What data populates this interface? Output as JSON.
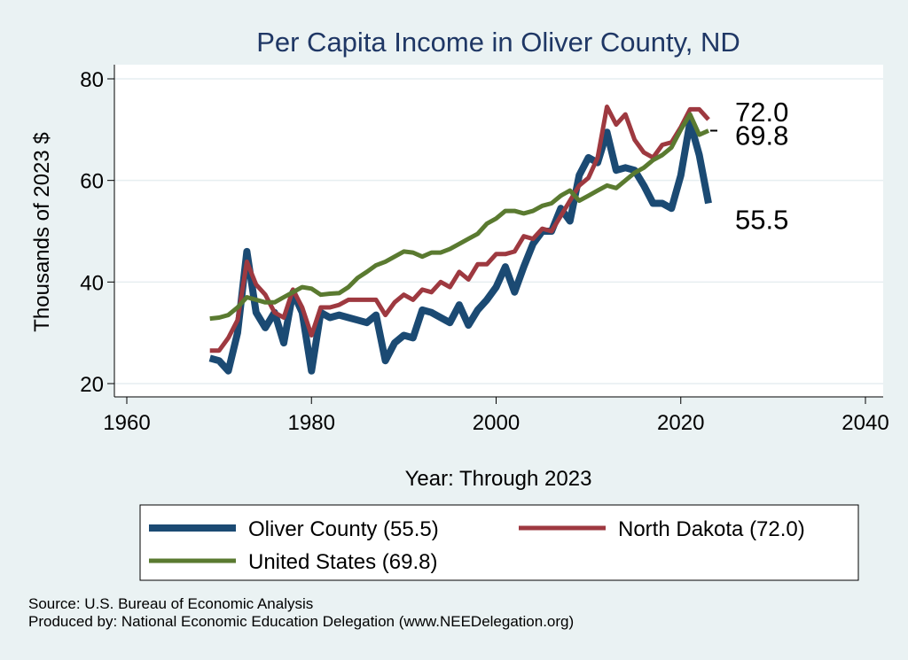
{
  "chart_data": {
    "type": "line",
    "title": "Per Capita Income in Oliver County, ND",
    "xlabel": "Year: Through 2023",
    "ylabel": "Thousands of 2023 $",
    "xlim": [
      1960,
      2040
    ],
    "ylim": [
      20,
      80
    ],
    "xticks": [
      1960,
      1980,
      2000,
      2020,
      2040
    ],
    "yticks": [
      20,
      40,
      60,
      80
    ],
    "grid": "horizontal",
    "legend_position": "bottom",
    "x": [
      1969,
      1970,
      1971,
      1972,
      1973,
      1974,
      1975,
      1976,
      1977,
      1978,
      1979,
      1980,
      1981,
      1982,
      1983,
      1984,
      1985,
      1986,
      1987,
      1988,
      1989,
      1990,
      1991,
      1992,
      1993,
      1994,
      1995,
      1996,
      1997,
      1998,
      1999,
      2000,
      2001,
      2002,
      2003,
      2004,
      2005,
      2006,
      2007,
      2008,
      2009,
      2010,
      2011,
      2012,
      2013,
      2014,
      2015,
      2016,
      2017,
      2018,
      2019,
      2020,
      2021,
      2022,
      2023
    ],
    "series": [
      {
        "name": "Oliver County (55.5)",
        "color": "#1b4a73",
        "end_label": "55.5",
        "values": [
          25,
          24.5,
          22.5,
          30,
          46,
          34,
          31,
          34,
          28,
          38,
          34,
          22.5,
          34,
          33,
          33.5,
          33,
          32.5,
          32,
          33.5,
          24.5,
          28,
          29.5,
          29,
          34.5,
          34,
          33,
          32,
          35.5,
          31.5,
          34.5,
          36.5,
          39,
          43,
          38,
          43,
          47.5,
          50,
          50,
          54.5,
          52,
          61,
          64.5,
          63.5,
          69.5,
          62,
          62.5,
          62,
          59,
          55.5,
          55.5,
          54.5,
          61,
          71.5,
          65,
          55.5
        ]
      },
      {
        "name": "North Dakota (72.0)",
        "color": "#9e3940",
        "end_label": "72.0",
        "values": [
          26.5,
          26.5,
          29,
          32.5,
          44,
          39.5,
          37.5,
          34,
          33,
          38.5,
          35,
          29.5,
          35,
          35,
          35.5,
          36.5,
          36.5,
          36.5,
          36.5,
          33.5,
          36,
          37.5,
          36.5,
          38.5,
          38,
          40,
          39,
          42,
          40.5,
          43.5,
          43.5,
          45.5,
          45.5,
          46,
          49,
          48.5,
          50.5,
          50,
          53,
          56,
          59,
          60.5,
          64.5,
          74.5,
          71,
          73,
          68,
          65.5,
          64.5,
          67,
          67.5,
          70.5,
          74,
          74,
          72
        ]
      },
      {
        "name": "United States (69.8)",
        "color": "#5a7a30",
        "end_label": "69.8",
        "values": [
          32.8,
          33,
          33.5,
          35,
          37,
          36.5,
          36,
          36,
          37,
          38,
          39,
          38.7,
          37.5,
          37.7,
          37.8,
          39,
          40.8,
          42,
          43.3,
          44,
          45,
          46,
          45.8,
          45,
          45.8,
          45.8,
          46.5,
          47.5,
          48.5,
          49.5,
          51.5,
          52.5,
          54,
          54,
          53.5,
          54,
          55,
          55.5,
          57,
          58,
          56,
          57,
          58,
          59,
          58.5,
          60,
          61.5,
          62.5,
          64,
          65,
          66.5,
          70,
          73,
          69,
          69.8
        ]
      }
    ],
    "source_line1": "Source: U.S. Bureau of Economic Analysis",
    "source_line2": "Produced by: National Economic Education Delegation (www.NEEDelegation.org)"
  }
}
